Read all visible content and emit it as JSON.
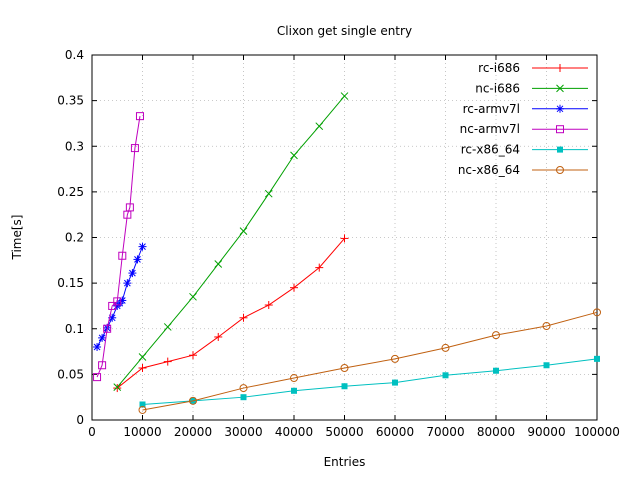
{
  "chart_data": {
    "type": "line",
    "title": "Clixon get single entry",
    "xlabel": "Entries",
    "ylabel": "Time[s]",
    "xlim": [
      0,
      100000
    ],
    "ylim": [
      0,
      0.4
    ],
    "grid": true,
    "legend_position": "top-right-inside",
    "x_ticks": {
      "values": [
        0,
        10000,
        20000,
        30000,
        40000,
        50000,
        60000,
        70000,
        80000,
        90000,
        100000
      ],
      "labels": [
        "0",
        "10000",
        "20000",
        "30000",
        "40000",
        "50000",
        "60000",
        "70000",
        "80000",
        "90000",
        "100000"
      ]
    },
    "y_ticks": {
      "values": [
        0,
        0.05,
        0.1,
        0.15,
        0.2,
        0.25,
        0.3,
        0.35,
        0.4
      ],
      "labels": [
        "0",
        "0.05",
        "0.1",
        "0.15",
        "0.2",
        "0.25",
        "0.3",
        "0.35",
        "0.4"
      ]
    },
    "series": [
      {
        "name": "rc-i686",
        "color": "#ff0000",
        "marker": "plus",
        "x": [
          5000,
          10000,
          15000,
          20000,
          25000,
          30000,
          35000,
          40000,
          45000,
          50000
        ],
        "y": [
          0.035,
          0.057,
          0.064,
          0.071,
          0.091,
          0.112,
          0.126,
          0.145,
          0.167,
          0.199
        ]
      },
      {
        "name": "nc-i686",
        "color": "#00a000",
        "marker": "cross",
        "x": [
          5000,
          10000,
          15000,
          20000,
          25000,
          30000,
          35000,
          40000,
          45000,
          50000
        ],
        "y": [
          0.036,
          0.069,
          0.102,
          0.135,
          0.171,
          0.207,
          0.248,
          0.29,
          0.322,
          0.355
        ]
      },
      {
        "name": "rc-armv7l",
        "color": "#0000ff",
        "marker": "asterisk",
        "x": [
          1000,
          2000,
          3000,
          4000,
          5000,
          5500,
          6000,
          7000,
          8000,
          9000,
          10000
        ],
        "y": [
          0.08,
          0.09,
          0.101,
          0.112,
          0.125,
          0.128,
          0.131,
          0.15,
          0.161,
          0.176,
          0.19
        ]
      },
      {
        "name": "nc-armv7l",
        "color": "#bf00bf",
        "marker": "square-open",
        "x": [
          1000,
          2000,
          3000,
          4000,
          5000,
          6000,
          7000,
          7500,
          8500,
          9500
        ],
        "y": [
          0.047,
          0.06,
          0.1,
          0.125,
          0.13,
          0.18,
          0.225,
          0.233,
          0.298,
          0.333
        ]
      },
      {
        "name": "rc-x86_64",
        "color": "#00c0c0",
        "marker": "square-filled",
        "x": [
          10000,
          20000,
          30000,
          40000,
          50000,
          60000,
          70000,
          80000,
          90000,
          100000
        ],
        "y": [
          0.017,
          0.021,
          0.025,
          0.032,
          0.037,
          0.041,
          0.049,
          0.054,
          0.06,
          0.067
        ]
      },
      {
        "name": "nc-x86_64",
        "color": "#c06010",
        "marker": "circle-open",
        "x": [
          10000,
          20000,
          30000,
          40000,
          50000,
          60000,
          70000,
          80000,
          90000,
          100000
        ],
        "y": [
          0.011,
          0.021,
          0.035,
          0.046,
          0.057,
          0.067,
          0.079,
          0.093,
          0.103,
          0.118
        ]
      }
    ]
  }
}
